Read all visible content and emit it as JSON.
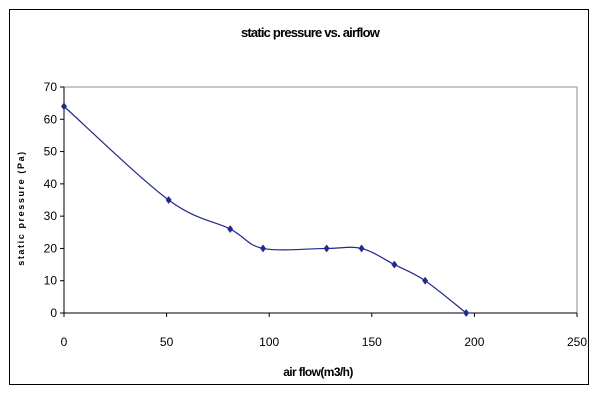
{
  "chart_data": {
    "type": "line",
    "title": "static pressure vs. airflow",
    "xlabel": "air flow(m3/h)",
    "ylabel": "static pressure (Pa)",
    "xlim": [
      0,
      250
    ],
    "ylim": [
      0,
      70
    ],
    "x_ticks": [
      "0",
      "50",
      "100",
      "150",
      "200",
      "250"
    ],
    "y_ticks": [
      "0",
      "10",
      "20",
      "30",
      "40",
      "50",
      "60",
      "70"
    ],
    "grid": false,
    "smooth": true,
    "marker": "diamond",
    "series": [
      {
        "x": [
          0,
          51,
          81,
          97,
          128,
          145,
          161,
          176,
          196
        ],
        "y": [
          64,
          35,
          26,
          20,
          20,
          20,
          15,
          10,
          0
        ],
        "color": "#1f2a8c"
      }
    ]
  }
}
